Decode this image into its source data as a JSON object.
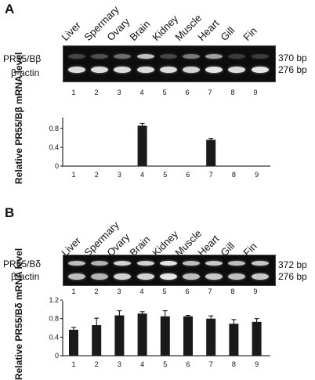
{
  "panels": [
    {
      "letter": "A",
      "tissues": [
        "Liver",
        "Spermary",
        "Ovary",
        "Brain",
        "Kidney",
        "Muscle",
        "Heart",
        "Gill",
        "Fin"
      ],
      "lanes": [
        "1",
        "2",
        "3",
        "4",
        "5",
        "6",
        "7",
        "8",
        "9"
      ],
      "gene_label": "PR55/Bβ",
      "control_label": "β-actin",
      "gene_bp": "370 bp",
      "control_bp": "276 bp",
      "gene_band_intensity": [
        0.15,
        0.2,
        0.35,
        0.75,
        0.15,
        0.4,
        0.6,
        0.1,
        0.1
      ],
      "control_band_intensity": [
        0.9,
        0.9,
        0.9,
        0.9,
        0.9,
        0.85,
        0.95,
        0.9,
        0.95
      ]
    },
    {
      "letter": "B",
      "tissues": [
        "Liver",
        "Spermary",
        "Ovary",
        "Brain",
        "Kidney",
        "Muscle",
        "Heart",
        "Gill",
        "Fin"
      ],
      "lanes": [
        "1",
        "2",
        "3",
        "4",
        "5",
        "6",
        "7",
        "8",
        "9"
      ],
      "gene_label": "PR55/Bδ",
      "control_label": "β-actin",
      "gene_bp": "372 bp",
      "control_bp": "276 bp",
      "gene_band_intensity": [
        0.75,
        0.7,
        0.85,
        0.85,
        0.95,
        0.75,
        0.8,
        0.75,
        0.8
      ],
      "control_band_intensity": [
        0.75,
        0.7,
        0.85,
        0.85,
        0.95,
        0.75,
        0.8,
        0.75,
        0.8
      ]
    }
  ],
  "chart_data": [
    {
      "type": "bar",
      "categories": [
        "1",
        "2",
        "3",
        "4",
        "5",
        "6",
        "7",
        "8",
        "9"
      ],
      "values": [
        0,
        0,
        0,
        0.86,
        0,
        0,
        0.56,
        0,
        0
      ],
      "errors": [
        0,
        0,
        0,
        0.05,
        0,
        0,
        0.03,
        0,
        0
      ],
      "ylabel": "Relative PR55/Bβ mRNA level",
      "ylim": [
        0,
        1.0
      ],
      "yticks": [
        "0",
        "0.4",
        "0.8"
      ],
      "ytick_values": [
        0,
        0.4,
        0.8
      ],
      "bar_color": "#1a1a1a"
    },
    {
      "type": "bar",
      "categories": [
        "1",
        "2",
        "3",
        "4",
        "5",
        "6",
        "7",
        "8",
        "9"
      ],
      "values": [
        0.56,
        0.66,
        0.87,
        0.91,
        0.85,
        0.85,
        0.8,
        0.69,
        0.73
      ],
      "errors": [
        0.05,
        0.15,
        0.1,
        0.04,
        0.12,
        0.02,
        0.06,
        0.09,
        0.07
      ],
      "ylabel": "Relative PR55/Bδ mRNA level",
      "ylim": [
        0,
        1.15
      ],
      "yticks": [
        "0",
        "0.4",
        "0.8",
        "1.2"
      ],
      "ytick_values": [
        0,
        0.4,
        0.8,
        1.2
      ],
      "bar_color": "#1a1a1a"
    }
  ]
}
